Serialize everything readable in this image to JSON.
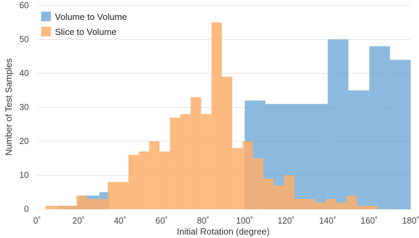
{
  "chart_data": {
    "type": "histogram",
    "title": "",
    "xlabel": "Initial Rotation (degree)",
    "ylabel": "Number of Test Samples",
    "xlim": [
      0,
      180
    ],
    "ylim": [
      0,
      60
    ],
    "x_ticks": [
      0,
      20,
      40,
      60,
      80,
      100,
      120,
      140,
      160,
      180
    ],
    "x_tick_labels": [
      "0˚",
      "20˚",
      "40˚",
      "60˚",
      "80˚",
      "100˚",
      "120˚",
      "140˚",
      "160˚",
      "180˚"
    ],
    "y_ticks": [
      0,
      10,
      20,
      30,
      40,
      50,
      60
    ],
    "y_tick_labels": [
      "0",
      "10",
      "20",
      "30",
      "40",
      "50",
      "60"
    ],
    "grid": true,
    "legend_position": "top-left",
    "series": [
      {
        "name": "Volume to Volume",
        "color": "#5b9bd0",
        "opacity": 0.7,
        "bin_edges": [
          0,
          10,
          20,
          25,
          30,
          35,
          100,
          110,
          140,
          150,
          160,
          170,
          180
        ],
        "counts": [
          0,
          1,
          4,
          4,
          5,
          0,
          32,
          31,
          50,
          35,
          48,
          44
        ]
      },
      {
        "name": "Slice to Volume",
        "color": "#fdae6b",
        "opacity": 0.85,
        "bin_edges": [
          4,
          9,
          19,
          24,
          34,
          44,
          49,
          54,
          59,
          64,
          69,
          74,
          79,
          84,
          89,
          94,
          99,
          104,
          109,
          114,
          119,
          124,
          129,
          134,
          139,
          144,
          149,
          154,
          159,
          164
        ],
        "counts": [
          1,
          1,
          4,
          3,
          8,
          16,
          17,
          20,
          17,
          27,
          28,
          33,
          28,
          55,
          39,
          18,
          20,
          15,
          9,
          7,
          10,
          3,
          3,
          2,
          3,
          2,
          4,
          1,
          1
        ]
      }
    ]
  }
}
